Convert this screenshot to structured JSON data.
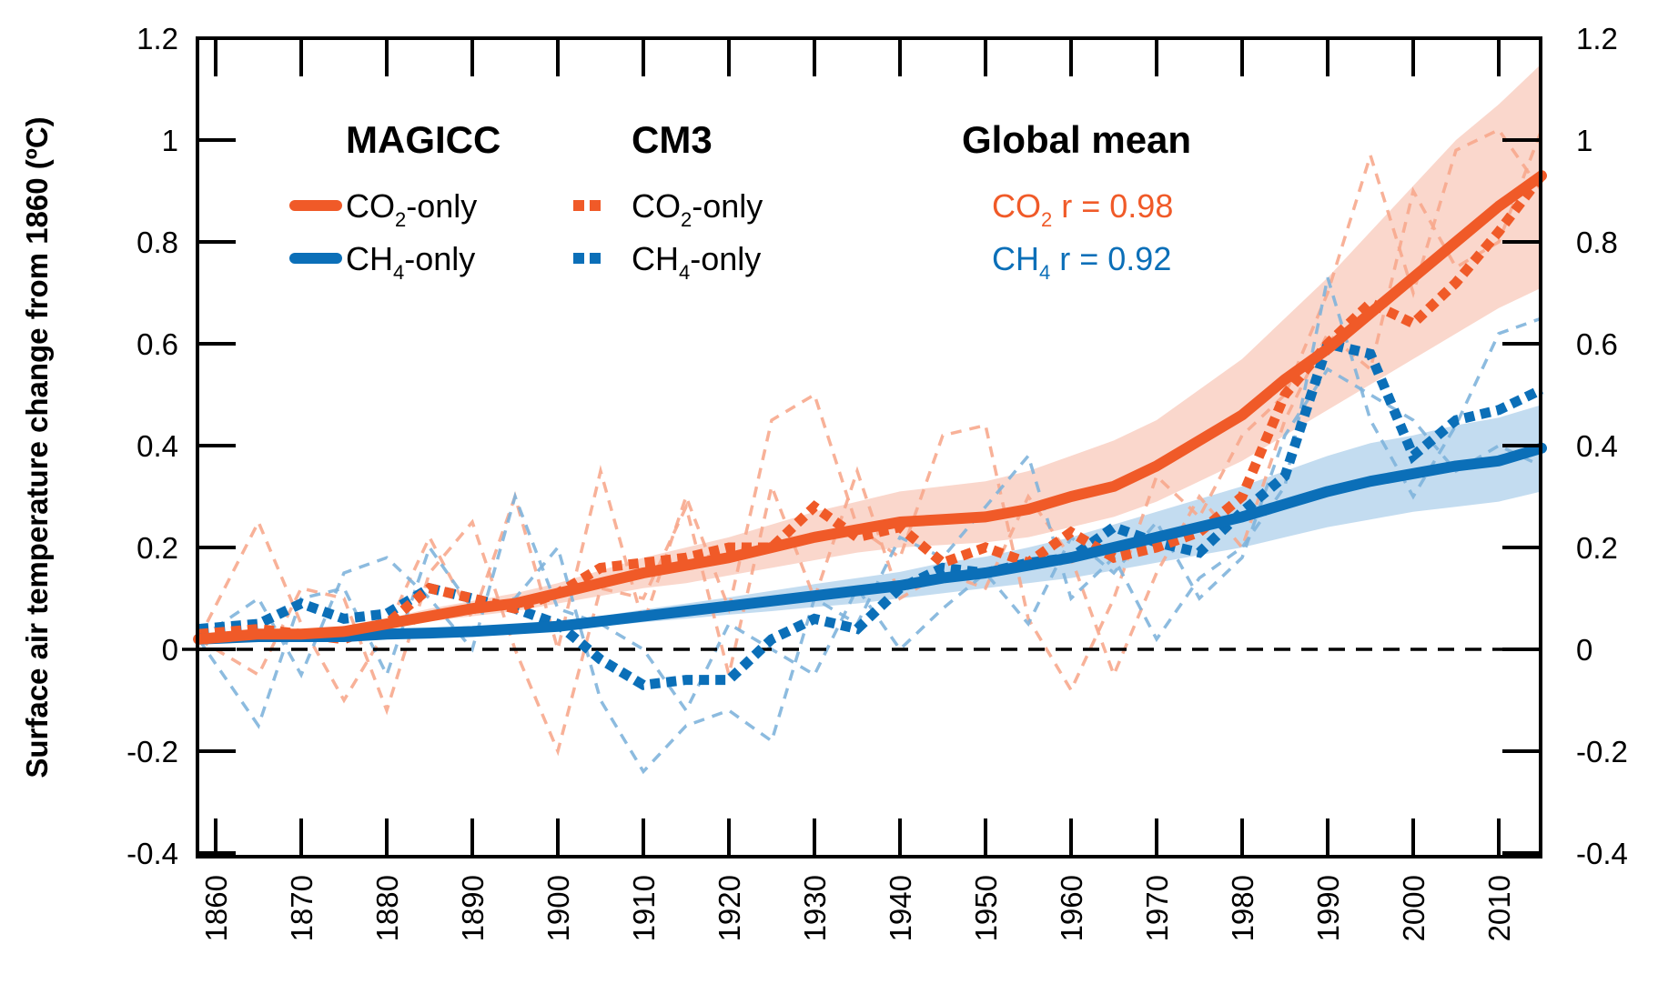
{
  "chart_data": {
    "type": "line",
    "title": "",
    "xlabel": "",
    "ylabel": "Surface air temperature change from 1860 (ºC)",
    "xlim": [
      1858,
      2015
    ],
    "ylim": [
      -0.4,
      1.2
    ],
    "x_ticks": [
      1860,
      1870,
      1880,
      1890,
      1900,
      1910,
      1920,
      1930,
      1940,
      1950,
      1960,
      1970,
      1980,
      1990,
      2000,
      2010
    ],
    "y_ticks": [
      -0.4,
      -0.2,
      0,
      0.2,
      0.4,
      0.6,
      0.8,
      1,
      1.2
    ],
    "y_tick_labels": [
      "-0.4",
      "-0.2",
      "0",
      "0.2",
      "0.4",
      "0.6",
      "0.8",
      "1",
      "1.2"
    ],
    "y_ticks_right": true,
    "zero_line": "dashed",
    "grid": false,
    "legend": {
      "placement": "top-left",
      "groups": [
        {
          "heading": "MAGICC",
          "entries": [
            {
              "label_main": "CO",
              "label_sub": "2",
              "label_tail": "-only",
              "style": "solid",
              "color": "#f05a28"
            },
            {
              "label_main": "CH",
              "label_sub": "4",
              "label_tail": "-only",
              "style": "solid",
              "color": "#0b6fb8"
            }
          ]
        },
        {
          "heading": "CM3",
          "entries": [
            {
              "label_main": "CO",
              "label_sub": "2",
              "label_tail": "-only",
              "style": "dotted",
              "color": "#f05a28"
            },
            {
              "label_main": "CH",
              "label_sub": "4",
              "label_tail": "-only",
              "style": "dotted",
              "color": "#0b6fb8"
            }
          ]
        }
      ]
    },
    "annotation": {
      "heading": "Global mean",
      "stats": [
        {
          "label_main": "CO",
          "label_sub": "2",
          "label_tail": " r = 0.98",
          "color": "#f05a28"
        },
        {
          "label_main": "CH",
          "label_sub": "4",
          "label_tail": " r = 0.92",
          "color": "#0b6fb8"
        }
      ]
    },
    "x": [
      1858,
      1865,
      1870,
      1875,
      1880,
      1885,
      1890,
      1895,
      1900,
      1905,
      1910,
      1915,
      1920,
      1925,
      1930,
      1935,
      1940,
      1945,
      1950,
      1955,
      1960,
      1965,
      1970,
      1975,
      1980,
      1985,
      1990,
      1995,
      2000,
      2005,
      2010,
      2015
    ],
    "series": [
      {
        "name": "MAGICC CO2-only",
        "style": "solid",
        "color": "#f05a28",
        "values": [
          0.02,
          0.03,
          0.03,
          0.035,
          0.05,
          0.065,
          0.08,
          0.09,
          0.11,
          0.13,
          0.15,
          0.165,
          0.18,
          0.2,
          0.22,
          0.235,
          0.25,
          0.255,
          0.26,
          0.275,
          0.3,
          0.32,
          0.36,
          0.41,
          0.46,
          0.53,
          0.59,
          0.66,
          0.73,
          0.8,
          0.87,
          0.93
        ]
      },
      {
        "name": "MAGICC CO2-only range",
        "style": "band",
        "color": "#f9d3c6",
        "lower": [
          0.02,
          0.025,
          0.025,
          0.03,
          0.04,
          0.055,
          0.065,
          0.075,
          0.09,
          0.105,
          0.12,
          0.13,
          0.145,
          0.16,
          0.175,
          0.19,
          0.2,
          0.205,
          0.21,
          0.22,
          0.24,
          0.26,
          0.29,
          0.33,
          0.37,
          0.42,
          0.47,
          0.52,
          0.57,
          0.62,
          0.67,
          0.71
        ],
        "upper": [
          0.02,
          0.035,
          0.04,
          0.045,
          0.06,
          0.08,
          0.095,
          0.11,
          0.13,
          0.155,
          0.18,
          0.2,
          0.22,
          0.245,
          0.27,
          0.29,
          0.31,
          0.32,
          0.33,
          0.35,
          0.38,
          0.41,
          0.45,
          0.51,
          0.57,
          0.65,
          0.73,
          0.82,
          0.91,
          1.0,
          1.07,
          1.15
        ]
      },
      {
        "name": "MAGICC CH4-only",
        "style": "solid",
        "color": "#0b6fb8",
        "values": [
          0.02,
          0.025,
          0.025,
          0.025,
          0.03,
          0.032,
          0.035,
          0.04,
          0.045,
          0.055,
          0.065,
          0.075,
          0.085,
          0.095,
          0.105,
          0.115,
          0.125,
          0.14,
          0.15,
          0.165,
          0.18,
          0.2,
          0.22,
          0.24,
          0.26,
          0.285,
          0.31,
          0.33,
          0.345,
          0.36,
          0.37,
          0.395
        ]
      },
      {
        "name": "MAGICC CH4-only range",
        "style": "band",
        "color": "#bcd8ee",
        "lower": [
          0.02,
          0.02,
          0.02,
          0.02,
          0.025,
          0.027,
          0.03,
          0.033,
          0.037,
          0.045,
          0.053,
          0.06,
          0.068,
          0.075,
          0.083,
          0.09,
          0.1,
          0.11,
          0.12,
          0.13,
          0.14,
          0.155,
          0.17,
          0.185,
          0.2,
          0.22,
          0.24,
          0.255,
          0.27,
          0.28,
          0.29,
          0.31
        ]
      },
      {
        "name": "MAGICC CH4-only range upper",
        "style": "band-upper",
        "color": "#bcd8ee",
        "upper": [
          0.02,
          0.03,
          0.03,
          0.03,
          0.035,
          0.038,
          0.042,
          0.048,
          0.055,
          0.065,
          0.078,
          0.09,
          0.102,
          0.115,
          0.128,
          0.14,
          0.152,
          0.17,
          0.182,
          0.2,
          0.22,
          0.245,
          0.27,
          0.295,
          0.32,
          0.35,
          0.38,
          0.405,
          0.42,
          0.44,
          0.455,
          0.48
        ]
      },
      {
        "name": "CM3 CO2-only",
        "style": "dotted",
        "color": "#f05a28",
        "values": [
          0.03,
          0.04,
          0.03,
          0.02,
          0.05,
          0.12,
          0.1,
          0.08,
          0.11,
          0.16,
          0.17,
          0.18,
          0.2,
          0.2,
          0.28,
          0.22,
          0.24,
          0.17,
          0.2,
          0.17,
          0.23,
          0.18,
          0.2,
          0.23,
          0.3,
          0.5,
          0.6,
          0.68,
          0.64,
          0.72,
          0.82,
          0.93
        ]
      },
      {
        "name": "CM3 CH4-only",
        "style": "dotted",
        "color": "#0b6fb8",
        "values": [
          0.04,
          0.05,
          0.09,
          0.06,
          0.07,
          0.12,
          0.1,
          0.08,
          0.05,
          -0.02,
          -0.07,
          -0.06,
          -0.06,
          0.02,
          0.06,
          0.04,
          0.12,
          0.16,
          0.15,
          0.17,
          0.18,
          0.24,
          0.21,
          0.19,
          0.27,
          0.34,
          0.6,
          0.58,
          0.38,
          0.45,
          0.47,
          0.51
        ]
      },
      {
        "name": "CM3 CO2-only members",
        "style": "thin-dashed",
        "color": "#f7a98d",
        "members": [
          [
            0.02,
            0.25,
            0.05,
            -0.1,
            0.04,
            0.22,
            0.06,
            0.3,
            0.0,
            0.35,
            0.05,
            0.3,
            0.08,
            0.45,
            0.5,
            0.24,
            0.18,
            0.42,
            0.44,
            0.06,
            -0.08,
            0.1,
            0.34,
            0.26,
            0.42,
            0.5,
            0.7,
            0.97,
            0.7,
            0.98,
            1.02,
            0.9
          ],
          [
            0.02,
            -0.05,
            0.12,
            0.1,
            -0.12,
            0.15,
            0.25,
            0.0,
            -0.2,
            0.12,
            0.1,
            0.28,
            -0.05,
            0.32,
            0.1,
            0.35,
            0.1,
            0.15,
            0.12,
            0.3,
            0.18,
            -0.05,
            0.15,
            0.3,
            0.2,
            0.45,
            0.62,
            0.55,
            0.9,
            0.75,
            0.8,
            1.02
          ]
        ]
      },
      {
        "name": "CM3 CH4-only members",
        "style": "thin-dashed",
        "color": "#7fb4dc",
        "members": [
          [
            0.02,
            -0.15,
            0.1,
            0.12,
            -0.05,
            0.2,
            0.08,
            0.1,
            0.2,
            -0.1,
            -0.24,
            -0.15,
            -0.12,
            -0.18,
            0.1,
            0.05,
            0.22,
            0.18,
            0.28,
            0.38,
            0.1,
            0.18,
            0.02,
            0.14,
            0.2,
            0.32,
            0.73,
            0.45,
            0.3,
            0.44,
            0.62,
            0.65
          ],
          [
            0.02,
            0.1,
            -0.05,
            0.15,
            0.18,
            0.1,
            0.0,
            0.3,
            0.08,
            0.05,
            0.0,
            -0.12,
            0.05,
            0.0,
            -0.05,
            0.12,
            0.0,
            0.08,
            0.15,
            0.05,
            0.22,
            0.15,
            0.25,
            0.1,
            0.18,
            0.42,
            0.55,
            0.5,
            0.45,
            0.35,
            0.4,
            0.36
          ]
        ]
      }
    ]
  }
}
